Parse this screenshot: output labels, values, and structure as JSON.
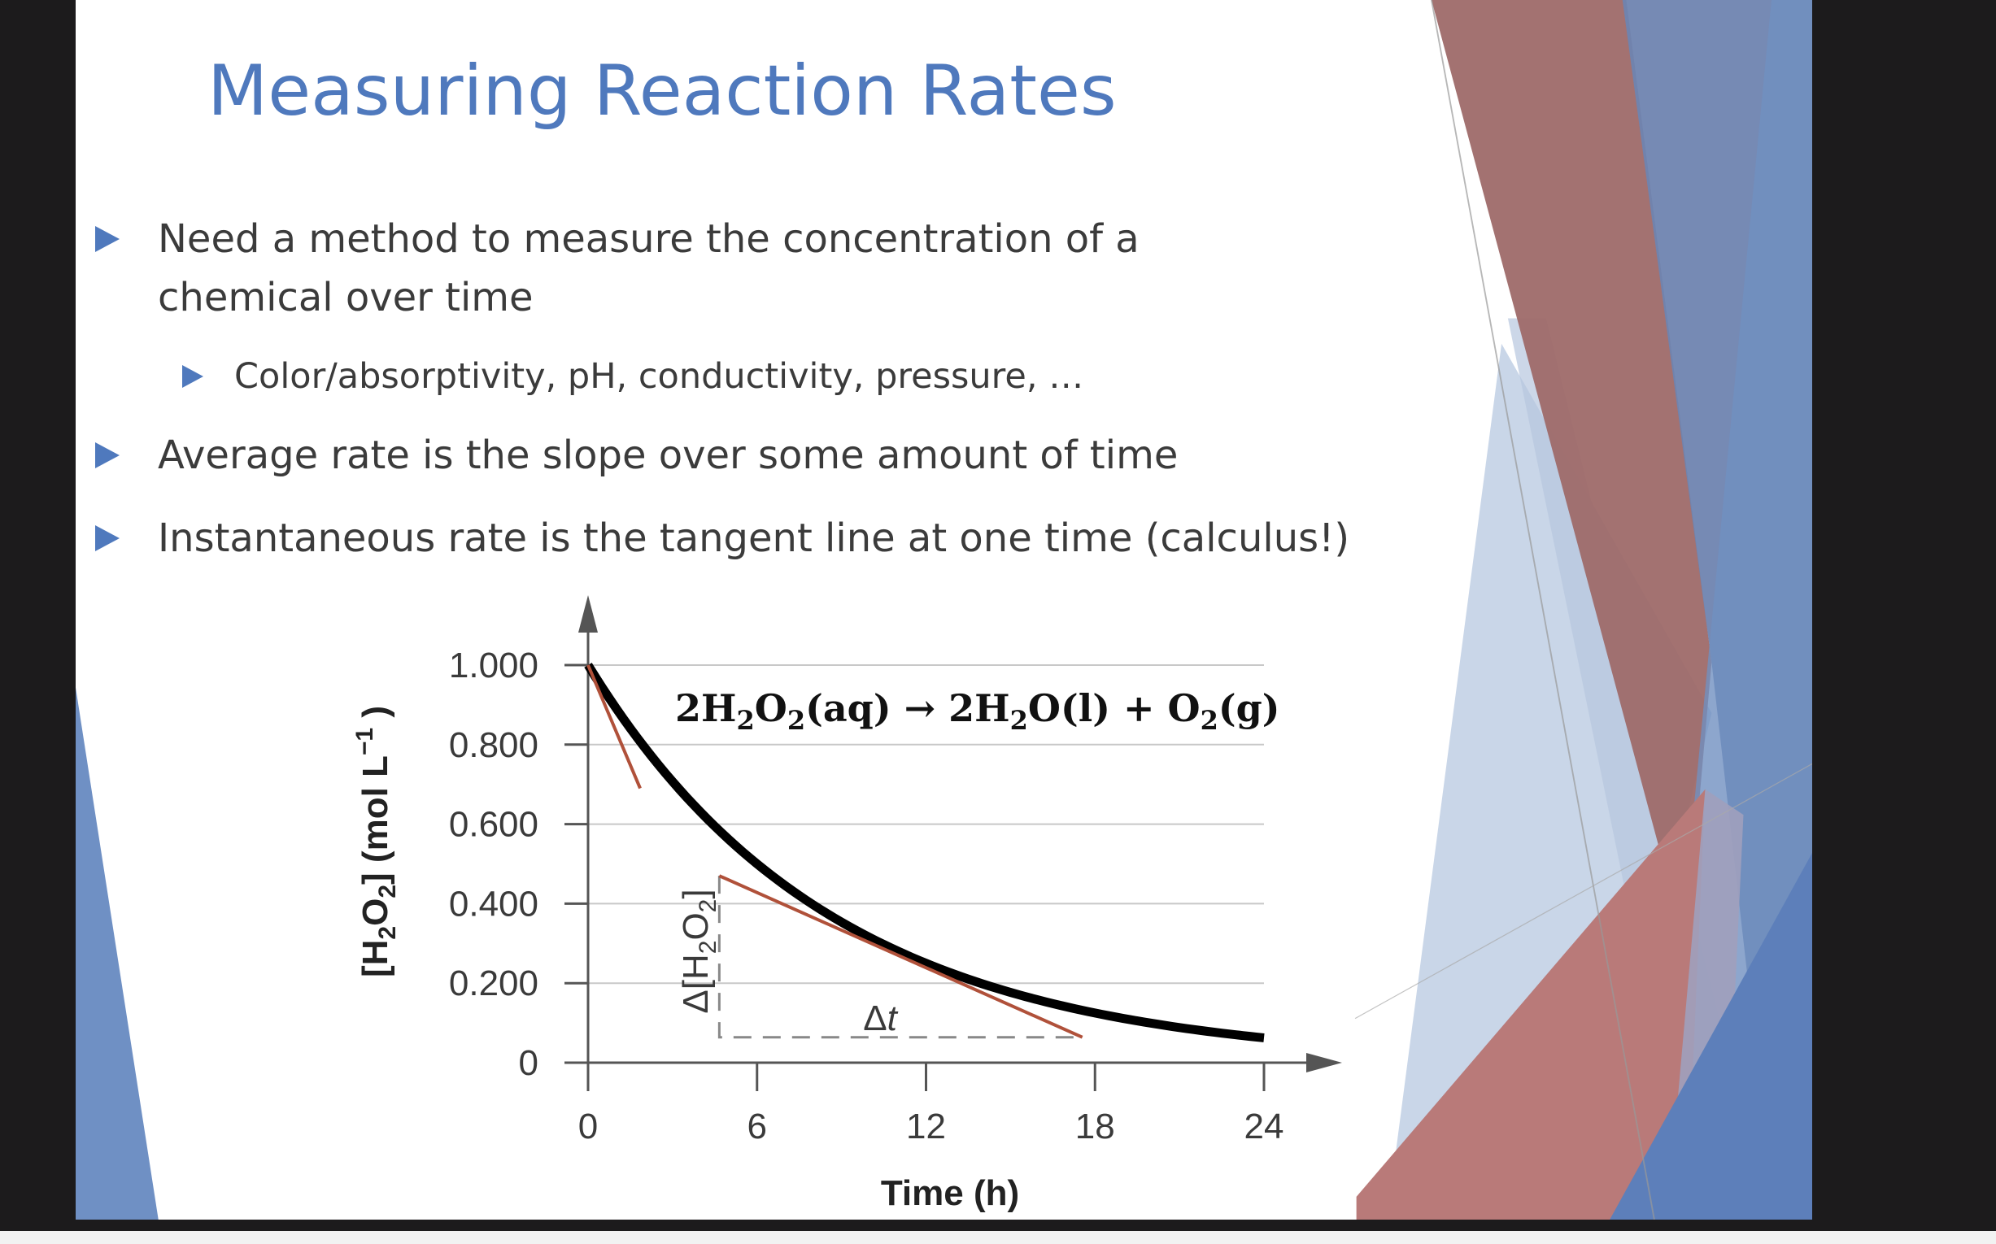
{
  "slide": {
    "title": "Measuring Reaction Rates",
    "bullets": [
      {
        "line1": "Need a method to measure the concentration of a",
        "line2": "chemical over time"
      },
      {
        "sub": "Color/absorptivity, pH, conductivity, pressure, …"
      },
      {
        "text": "Average rate is the slope over some amount of time"
      },
      {
        "text": "Instantaneous rate is the tangent line at one time (calculus!)"
      }
    ],
    "colors": {
      "title": "#4f79bd",
      "bullet_marker": "#4f79bd",
      "text": "#3b3b3b",
      "deco_red": "#a0706e",
      "deco_blue": "#6f84b0",
      "deco_light_blue": "#c9d6e8",
      "deco_pink": "#b97a79"
    }
  },
  "chart_data": {
    "type": "line",
    "equation": {
      "lhs": "2H",
      "s1": "2",
      "o": "O",
      "s2": "2",
      "aq": "(aq) → 2H",
      "s3": "2",
      "o2": "O(l) + O",
      "s4": "2",
      "g": "(g)"
    },
    "xlabel": "Time (h)",
    "ylabel": {
      "open": "[H",
      "sub1": "2",
      "o": "O",
      "sub2": "2",
      "close": "] (mol L",
      "sup": "−1",
      "end": " )"
    },
    "x_ticks": [
      "0",
      "6",
      "12",
      "18",
      "24"
    ],
    "y_ticks": [
      "0",
      "0.200",
      "0.400",
      "0.600",
      "0.800",
      "1.000"
    ],
    "xlim": [
      0,
      24
    ],
    "ylim": [
      0,
      1.0
    ],
    "grid": "horizontal",
    "series": [
      {
        "x": [
          0,
          3,
          6,
          9,
          12,
          15,
          18,
          21,
          24
        ],
        "y": [
          1.0,
          0.707,
          0.5,
          0.354,
          0.25,
          0.177,
          0.125,
          0.088,
          0.0625
        ],
        "color": "#000000"
      }
    ],
    "tangents": [
      {
        "x": [
          0,
          1.85
        ],
        "y": [
          1.0,
          0.69
        ],
        "color": "#b0513a"
      },
      {
        "x": [
          4.66,
          17.55
        ],
        "y": [
          0.47,
          0.064
        ],
        "color": "#b0513a"
      }
    ],
    "delta_triangle": {
      "x": [
        4.66,
        17.55
      ],
      "y": [
        0.47,
        0.064
      ]
    },
    "annotations": {
      "delta_c": {
        "delta": "Δ[H",
        "sub": "2",
        "o": "O",
        "sub2": "2",
        "close": "]"
      },
      "delta_t": {
        "delta": "Δ",
        "t": "t"
      }
    }
  }
}
